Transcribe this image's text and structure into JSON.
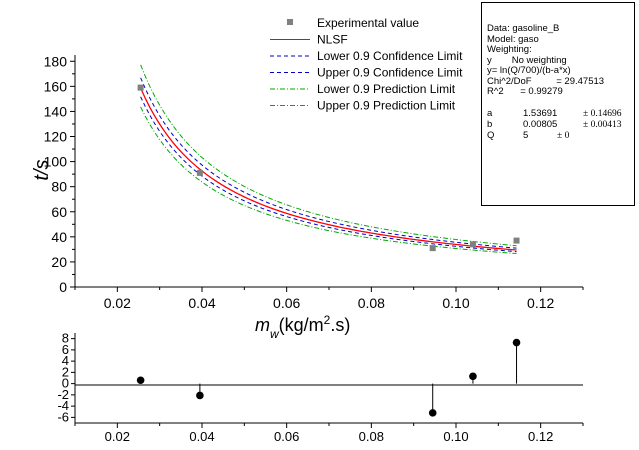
{
  "chart_data": [
    {
      "type": "scatter",
      "xlabel_main": "m",
      "xlabel_sub": "w",
      "xlabel_unit_pre": "(kg/m",
      "xlabel_unit_sup": "2",
      "xlabel_unit_post": ".s)",
      "ylabel": "t/s",
      "xlim": [
        0.01,
        0.13
      ],
      "ylim": [
        0,
        185
      ],
      "x_ticks": [
        "0.02",
        "0.04",
        "0.06",
        "0.08",
        "0.10",
        "0.12"
      ],
      "y_ticks": [
        "0",
        "20",
        "40",
        "60",
        "80",
        "100",
        "120",
        "140",
        "160",
        "180"
      ],
      "series": [
        {
          "name": "Experimental value",
          "kind": "points",
          "color": "#808080",
          "x": [
            0.0255,
            0.0395,
            0.0945,
            0.104,
            0.1143
          ],
          "y": [
            159,
            91,
            31,
            34,
            37
          ]
        },
        {
          "name": "NLSF",
          "kind": "fit",
          "color": "#ff0000",
          "dash": "",
          "offset": 0
        },
        {
          "name": "Lower 0.9 Confidence Limit",
          "kind": "fit",
          "color": "#0000cc",
          "dash": "4,3",
          "offset": -0.045
        },
        {
          "name": "Upper 0.9 Confidence Limit",
          "kind": "fit",
          "color": "#0000cc",
          "dash": "4,3",
          "offset": 0.05
        },
        {
          "name": "Lower 0.9 Prediction Limit",
          "kind": "fit",
          "color": "#00aa00",
          "dash": "5,2,1,2",
          "offset": -0.1
        },
        {
          "name": "Upper 0.9 Prediction Limit",
          "kind": "fit",
          "color": "#00aa00",
          "dash": "5,2,1,2",
          "offset": 0.11
        }
      ],
      "fit_model": {
        "a": 1.53691,
        "b": 0.00805,
        "Q": 5,
        "x_range": [
          0.0255,
          0.1143
        ]
      },
      "legend_position": "top-center"
    },
    {
      "type": "scatter",
      "subtype": "residual-stem",
      "xlim": [
        0.01,
        0.13
      ],
      "ylim": [
        -7,
        9
      ],
      "x_ticks": [
        "0.02",
        "0.04",
        "0.06",
        "0.08",
        "0.10",
        "0.12"
      ],
      "y_ticks": [
        "-6",
        "-4",
        "-2",
        "0",
        "2",
        "4",
        "6",
        "8"
      ],
      "x": [
        0.0255,
        0.0395,
        0.0945,
        0.104,
        0.1143
      ],
      "y": [
        0.6,
        -2.1,
        -5.2,
        1.3,
        7.3
      ]
    }
  ],
  "stats_box": {
    "data_line": "Data: gasoline_B",
    "model_line": "Model: gaso",
    "weighting_line": "Weighting:",
    "w_y": "y",
    "w_none": "No weighting",
    "equation": "y= ln(Q/700)/(b-a*x)",
    "chi_label": "Chi^2/DoF",
    "chi_value": "= 29.47513",
    "r2_label": "R^2",
    "r2_value": "= 0.99279",
    "params": [
      {
        "name": "a",
        "value": "1.53691",
        "err": "± 0.14696"
      },
      {
        "name": "b",
        "value": "0.00805",
        "err": "± 0.00413"
      },
      {
        "name": "Q",
        "value": "5",
        "err": "± 0"
      }
    ]
  }
}
